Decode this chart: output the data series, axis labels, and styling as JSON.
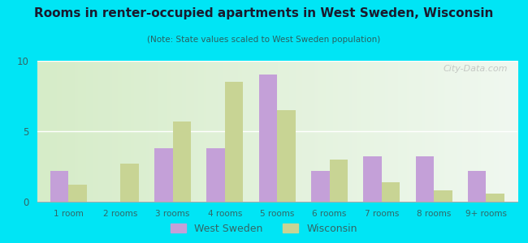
{
  "title": "Rooms in renter-occupied apartments in West Sweden, Wisconsin",
  "subtitle": "(Note: State values scaled to West Sweden population)",
  "categories": [
    "1 room",
    "2 rooms",
    "3 rooms",
    "4 rooms",
    "5 rooms",
    "6 rooms",
    "7 rooms",
    "8 rooms",
    "9+ rooms"
  ],
  "west_sweden": [
    2.2,
    0.0,
    3.8,
    3.8,
    9.0,
    2.2,
    3.2,
    3.2,
    2.2
  ],
  "wisconsin": [
    1.2,
    2.7,
    5.7,
    8.5,
    6.5,
    3.0,
    1.4,
    0.8,
    0.6
  ],
  "west_sweden_color": "#c4a0d8",
  "wisconsin_color": "#c8d494",
  "background_outer": "#00e5f5",
  "ylim": [
    0,
    10
  ],
  "yticks": [
    0,
    5,
    10
  ],
  "watermark": "City-Data.com",
  "legend_west_sweden": "West Sweden",
  "legend_wisconsin": "Wisconsin",
  "title_color": "#1a1a2e",
  "subtitle_color": "#2a6060",
  "tick_color": "#336666",
  "plot_bg_left": "#d6ecc8",
  "plot_bg_right": "#f0f8f0"
}
